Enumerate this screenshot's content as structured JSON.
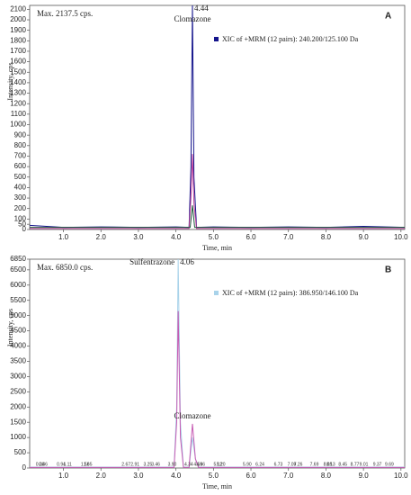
{
  "chart_data": [
    {
      "type": "line",
      "panel": "A",
      "max_text": "Max. 2137.5 cps.",
      "x_label": "Time, min",
      "y_label": "Intensity, cps",
      "xlim": [
        0.1,
        10.1
      ],
      "ylim": [
        0,
        2137.5
      ],
      "xticks": [
        {
          "value": 1,
          "label": "1.0"
        },
        {
          "value": 2,
          "label": "2.0"
        },
        {
          "value": 3,
          "label": "3.0"
        },
        {
          "value": 4,
          "label": "4.0"
        },
        {
          "value": 5,
          "label": "5.0"
        },
        {
          "value": 6,
          "label": "6.0"
        },
        {
          "value": 7,
          "label": "7.0"
        },
        {
          "value": 8,
          "label": "8.0"
        },
        {
          "value": 9,
          "label": "9.0"
        },
        {
          "value": 10,
          "label": "10.0"
        }
      ],
      "yticks": [
        0,
        50,
        100,
        200,
        300,
        400,
        500,
        600,
        700,
        800,
        900,
        1000,
        1100,
        1200,
        1300,
        1400,
        1500,
        1600,
        1700,
        1800,
        1900,
        2000,
        2100
      ],
      "series": [
        {
          "name": "XIC of +MRM (12 pairs): 240.200/125.100 Da",
          "color": "#14148c",
          "x": [
            0.1,
            1,
            2,
            3,
            4,
            4.35,
            4.4,
            4.44,
            4.48,
            4.55,
            5,
            6,
            7,
            8,
            9,
            10.1
          ],
          "values": [
            40,
            20,
            25,
            20,
            25,
            20,
            600,
            2137.5,
            500,
            20,
            25,
            20,
            25,
            20,
            30,
            20
          ]
        },
        {
          "color": "#c0409a",
          "x": [
            0.1,
            4.35,
            4.4,
            4.44,
            4.48,
            4.55,
            10.1
          ],
          "values": [
            10,
            10,
            300,
            720,
            250,
            10,
            10
          ]
        },
        {
          "color": "#1e5a3c",
          "x": [
            0.1,
            4.38,
            4.44,
            4.5,
            10.1
          ],
          "values": [
            20,
            20,
            230,
            20,
            20
          ]
        }
      ],
      "annotations": [
        {
          "text": "4.44",
          "x": 4.44,
          "y": 2137.5,
          "align": "start"
        },
        {
          "text": "Clomazone",
          "x": 4.44,
          "y": 1930,
          "align": "middle"
        }
      ]
    },
    {
      "type": "line",
      "panel": "B",
      "max_text": "Max. 6850.0 cps.",
      "x_label": "Time, min",
      "y_label": "Intensity, cps",
      "xlim": [
        0.1,
        10.1
      ],
      "ylim": [
        0,
        6850
      ],
      "xticks": [
        {
          "value": 1,
          "label": "1.0"
        },
        {
          "value": 2,
          "label": "2.0"
        },
        {
          "value": 3,
          "label": "3.0"
        },
        {
          "value": 4,
          "label": "4.0"
        },
        {
          "value": 5,
          "label": "5.0"
        },
        {
          "value": 6,
          "label": "6.0"
        },
        {
          "value": 7,
          "label": "7.0"
        },
        {
          "value": 8,
          "label": "8.0"
        },
        {
          "value": 9,
          "label": "9.0"
        },
        {
          "value": 10,
          "label": "10.0"
        }
      ],
      "yticks": [
        0,
        500,
        1000,
        1500,
        2000,
        2500,
        3000,
        3500,
        4000,
        4500,
        5000,
        5500,
        6000,
        6500,
        6850
      ],
      "series": [
        {
          "name": "XIC of +MRM (12 pairs): 386.950/146.100 Da",
          "color": "#a9d3ea",
          "x": [
            0.1,
            3.95,
            4.02,
            4.06,
            4.12,
            4.2,
            4.35,
            4.44,
            4.52,
            4.6,
            10.1
          ],
          "values": [
            30,
            30,
            2000,
            6850,
            1500,
            30,
            30,
            1000,
            300,
            30,
            30
          ]
        },
        {
          "color": "#c65bb3",
          "x": [
            0.1,
            3.95,
            4.02,
            4.06,
            4.12,
            4.2,
            4.35,
            4.44,
            4.52,
            4.6,
            10.1
          ],
          "values": [
            20,
            20,
            1500,
            5150,
            1000,
            20,
            20,
            1450,
            300,
            20,
            20
          ]
        }
      ],
      "annotations": [
        {
          "text": "4.06",
          "x": 4.06,
          "y": 6850,
          "align": "start"
        },
        {
          "text": "Sulfentrazone",
          "x": 4.06,
          "y": 6850,
          "align": "end"
        },
        {
          "text": "Clomazone",
          "x": 4.44,
          "y": 1450,
          "align": "middle"
        }
      ],
      "baseline_labels": [
        {
          "value": 0.38,
          "label": "0.38"
        },
        {
          "value": 0.46,
          "label": "0.46"
        },
        {
          "value": 0.94,
          "label": "0.94"
        },
        {
          "value": 1.11,
          "label": "1.11"
        },
        {
          "value": 1.58,
          "label": "1.58"
        },
        {
          "value": 1.65,
          "label": "1.65"
        },
        {
          "value": 2.67,
          "label": "2.67"
        },
        {
          "value": 2.91,
          "label": "2.91"
        },
        {
          "value": 3.25,
          "label": "3.25"
        },
        {
          "value": 3.46,
          "label": "3.46"
        },
        {
          "value": 3.9,
          "label": "3.90"
        },
        {
          "value": 4.34,
          "label": "4.34"
        },
        {
          "value": 4.59,
          "label": "4.59"
        },
        {
          "value": 4.66,
          "label": "4.66"
        },
        {
          "value": 5.12,
          "label": "5.12"
        },
        {
          "value": 5.2,
          "label": "5.20"
        },
        {
          "value": 5.9,
          "label": "5.90"
        },
        {
          "value": 6.24,
          "label": "6.24"
        },
        {
          "value": 6.73,
          "label": "6.73"
        },
        {
          "value": 7.09,
          "label": "7.09"
        },
        {
          "value": 7.26,
          "label": "7.26"
        },
        {
          "value": 7.69,
          "label": "7.69"
        },
        {
          "value": 8.05,
          "label": "8.05"
        },
        {
          "value": 8.13,
          "label": "8.13"
        },
        {
          "value": 8.45,
          "label": "8.45"
        },
        {
          "value": 8.77,
          "label": "8.77"
        },
        {
          "value": 9.01,
          "label": "9.01"
        },
        {
          "value": 9.37,
          "label": "9.37"
        },
        {
          "value": 9.69,
          "label": "9.69"
        }
      ]
    }
  ]
}
